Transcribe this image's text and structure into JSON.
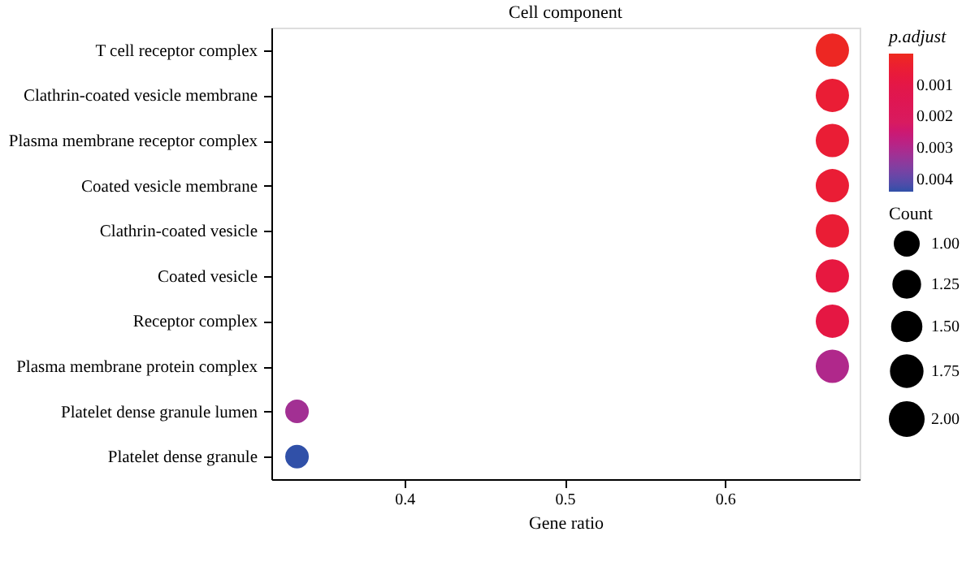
{
  "chart_data": {
    "type": "bubble",
    "orientation": "horizontal",
    "title": "Cell component",
    "xlabel": "Gene ratio",
    "clabel": "p.adjust",
    "legend_title": "Count",
    "categories": [
      "T cell receptor complex",
      "Clathrin-coated vesicle membrane",
      "Plasma membrane receptor complex",
      "Coated vesicle membrane",
      "Clathrin-coated vesicle",
      "Coated vesicle",
      "Receptor complex",
      "Plasma membrane protein complex",
      "Platelet dense granule lumen",
      "Platelet dense granule"
    ],
    "values": [
      0.667,
      0.667,
      0.667,
      0.667,
      0.667,
      0.667,
      0.667,
      0.667,
      0.333,
      0.333
    ],
    "sizes": [
      2,
      2,
      2,
      2,
      2,
      2,
      2,
      2,
      1,
      1
    ],
    "cvalues": [
      0.0001,
      0.0005,
      0.0005,
      0.0005,
      0.0005,
      0.0008,
      0.0009,
      0.003,
      0.0032,
      0.0044
    ],
    "size_legend": [
      {
        "value": 1,
        "label": "1.00"
      },
      {
        "value": 1.25,
        "label": "1.25"
      },
      {
        "value": 1.5,
        "label": "1.50"
      },
      {
        "value": 1.75,
        "label": "1.75"
      },
      {
        "value": 2,
        "label": "2.00"
      }
    ],
    "clim": [
      0.0044,
      0.0
    ],
    "cticks": [
      0.001,
      0.002,
      0.003,
      0.004
    ],
    "xlim": [
      0.317,
      0.684
    ],
    "xticks": [
      0.4,
      0.5,
      0.6
    ],
    "grid": false
  }
}
